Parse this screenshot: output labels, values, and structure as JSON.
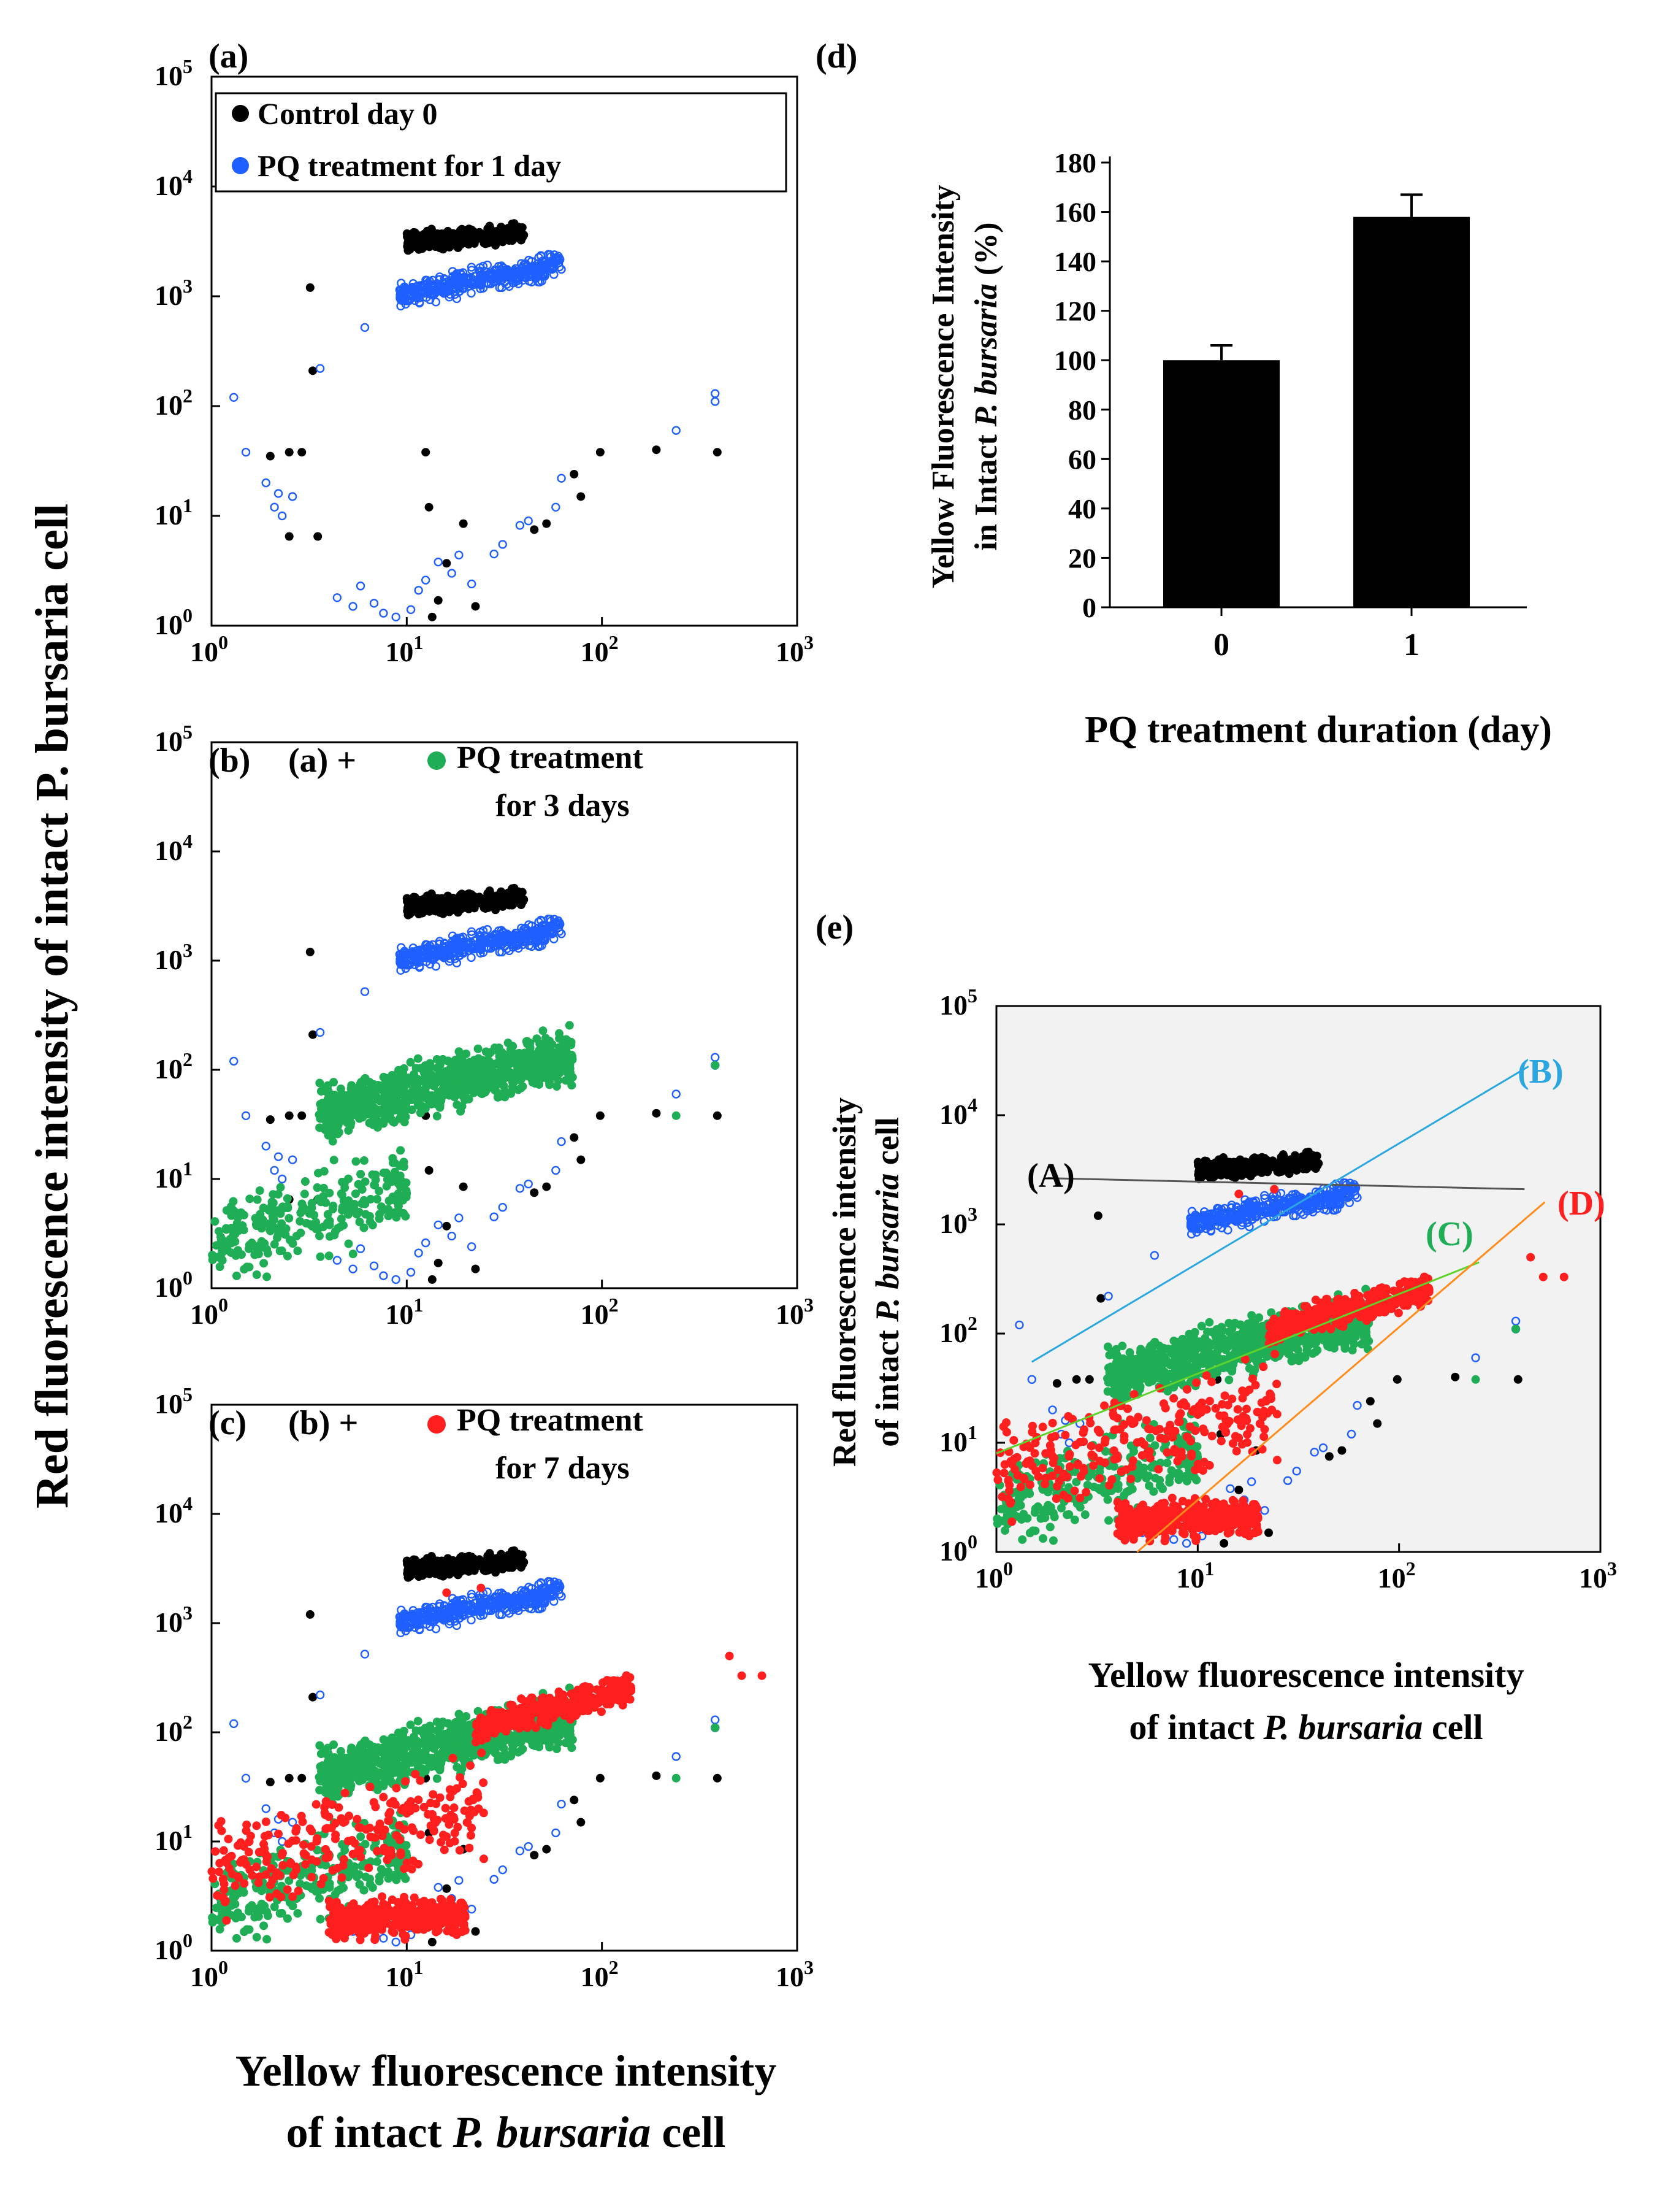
{
  "chart_data": [
    {
      "id": "a",
      "type": "scatter",
      "panel_label": "(a)",
      "x_scale": "log",
      "y_scale": "log",
      "xlim": [
        1,
        1000
      ],
      "ylim": [
        1,
        100000
      ],
      "x_ticks": [
        "10",
        "10",
        "10",
        "10"
      ],
      "x_tick_exps": [
        "0",
        "1",
        "2",
        "3"
      ],
      "y_ticks": [
        "10",
        "10",
        "10",
        "10",
        "10",
        "10"
      ],
      "y_tick_exps": [
        "0",
        "1",
        "2",
        "3",
        "4",
        "5"
      ],
      "legend": [
        {
          "name": "Control day 0",
          "color": "#000000"
        },
        {
          "name": "PQ treatment for 1 day",
          "color": "#1f5fff"
        }
      ],
      "series": [
        {
          "name": "Control day 0",
          "color": "#000000",
          "marker": "filled",
          "cluster": {
            "count": 260,
            "x_log": [
              1.0,
              1.6
            ],
            "y_log": [
              3.38,
              3.7
            ],
            "slope": 0.15
          },
          "points": [
            [
              3.2,
              1200
            ],
            [
              3.3,
              210
            ],
            [
              2.0,
              35
            ],
            [
              2.5,
              38
            ],
            [
              2.9,
              38
            ],
            [
              2.5,
              6.5
            ],
            [
              3.5,
              6.5
            ],
            [
              12.5,
              38
            ],
            [
              13.0,
              12
            ],
            [
              16,
              3.7
            ],
            [
              19.5,
              8.5
            ],
            [
              14.5,
              1.7
            ],
            [
              13.5,
              1.2
            ],
            [
              22.5,
              1.5
            ],
            [
              45,
              7.5
            ],
            [
              52,
              8.5
            ],
            [
              72,
              24
            ],
            [
              78,
              15
            ],
            [
              98,
              38
            ],
            [
              190,
              40
            ],
            [
              390,
              38
            ]
          ]
        },
        {
          "name": "PQ treatment for 1 day",
          "color": "#1f5fff",
          "marker": "open",
          "cluster": {
            "count": 420,
            "x_log": [
              0.95,
              1.8
            ],
            "y_log": [
              2.95,
              3.35
            ],
            "slope": 0.38
          },
          "points": [
            [
              1.3,
              120
            ],
            [
              1.5,
              38
            ],
            [
              1.9,
              20
            ],
            [
              2.1,
              12
            ],
            [
              2.3,
              10
            ],
            [
              2.2,
              16
            ],
            [
              2.6,
              15
            ],
            [
              3.6,
              220
            ],
            [
              4.4,
              1.8
            ],
            [
              5.3,
              1.5
            ],
            [
              5.8,
              2.3
            ],
            [
              6.8,
              1.6
            ],
            [
              7.6,
              1.3
            ],
            [
              8.8,
              1.2
            ],
            [
              6.1,
              520
            ],
            [
              10.5,
              1.4
            ],
            [
              11.5,
              2.1
            ],
            [
              12.5,
              2.6
            ],
            [
              14.5,
              3.8
            ],
            [
              17,
              3.0
            ],
            [
              18.5,
              4.4
            ],
            [
              21.5,
              2.4
            ],
            [
              28,
              4.5
            ],
            [
              31,
              5.5
            ],
            [
              38,
              8.2
            ],
            [
              42,
              9.0
            ],
            [
              58,
              12
            ],
            [
              62,
              22
            ],
            [
              240,
              60
            ],
            [
              380,
              110
            ],
            [
              380,
              130
            ]
          ]
        }
      ]
    },
    {
      "id": "b",
      "type": "scatter",
      "panel_label": "(b)",
      "legend_prefix": "(a) +",
      "legend": [
        {
          "name": "PQ treatment",
          "name_line2": "for 3 days",
          "color": "#1fae55"
        }
      ],
      "x_scale": "log",
      "y_scale": "log",
      "xlim": [
        1,
        1000
      ],
      "ylim": [
        1,
        100000
      ],
      "x_ticks": [
        "10",
        "10",
        "10",
        "10"
      ],
      "x_tick_exps": [
        "0",
        "1",
        "2",
        "3"
      ],
      "y_ticks": [
        "10",
        "10",
        "10",
        "10",
        "10",
        "10"
      ],
      "y_tick_exps": [
        "0",
        "1",
        "2",
        "3",
        "4",
        "5"
      ],
      "series": [
        {
          "name": "PQ treatment for 3 days",
          "color": "#1fae55",
          "marker": "filled",
          "clusters": [
            {
              "count": 900,
              "x_log": [
                0.55,
                1.85
              ],
              "y_log": [
                1.45,
                2.3
              ],
              "slope": 0.45
            },
            {
              "count": 260,
              "x_log": [
                0.0,
                1.0
              ],
              "y_log": [
                0.0,
                1.35
              ],
              "slope": 0.6
            }
          ],
          "points": [
            [
              240,
              38
            ],
            [
              380,
              110
            ]
          ]
        }
      ]
    },
    {
      "id": "c",
      "type": "scatter",
      "panel_label": "(c)",
      "legend_prefix": "(b) +",
      "legend": [
        {
          "name": "PQ treatment",
          "name_line2": "for 7 days",
          "color": "#ff1f1f"
        }
      ],
      "x_scale": "log",
      "y_scale": "log",
      "xlim": [
        1,
        1000
      ],
      "ylim": [
        1,
        100000
      ],
      "x_ticks": [
        "10",
        "10",
        "10",
        "10"
      ],
      "x_tick_exps": [
        "0",
        "1",
        "2",
        "3"
      ],
      "y_ticks": [
        "10",
        "10",
        "10",
        "10",
        "10",
        "10"
      ],
      "y_tick_exps": [
        "0",
        "1",
        "2",
        "3",
        "4",
        "5"
      ],
      "xlabel_line1": "Yellow fluorescence intensity",
      "xlabel_line2": "of intact P. bursaria cell",
      "series": [
        {
          "name": "PQ treatment for 7 days",
          "color": "#ff1f1f",
          "marker": "filled",
          "clusters": [
            {
              "count": 380,
              "x_log": [
                1.35,
                2.15
              ],
              "y_log": [
                2.0,
                2.45
              ],
              "slope": 0.5
            },
            {
              "count": 380,
              "x_log": [
                0.6,
                1.3
              ],
              "y_log": [
                0.0,
                0.6
              ],
              "slope": 0.1
            },
            {
              "count": 260,
              "x_log": [
                0.0,
                1.4
              ],
              "y_log": [
                0.3,
                1.8
              ],
              "slope": 0.45
            }
          ],
          "points": [
            [
              520,
              330
            ],
            [
              660,
              330
            ],
            [
              450,
              500
            ],
            [
              16,
              1900
            ],
            [
              24,
              2100
            ]
          ]
        }
      ]
    },
    {
      "id": "d",
      "type": "bar",
      "panel_label": "(d)",
      "categories": [
        "0",
        "1"
      ],
      "values": [
        100,
        158
      ],
      "errors": [
        6,
        9
      ],
      "ylim": [
        0,
        180
      ],
      "y_ticks": [
        "0",
        "20",
        "40",
        "60",
        "80",
        "100",
        "120",
        "140",
        "160",
        "180"
      ],
      "ylabel_line1": "Yellow Fluorescence Intensity",
      "ylabel_line2": "in Intact P. bursaria (%)",
      "xlabel": "PQ treatment duration  (day)",
      "bar_color": "#000000"
    },
    {
      "id": "e",
      "type": "scatter",
      "panel_label": "(e)",
      "x_scale": "log",
      "y_scale": "log",
      "xlim": [
        1,
        1000
      ],
      "ylim": [
        1,
        100000
      ],
      "x_ticks": [
        "10",
        "10",
        "10",
        "10"
      ],
      "x_tick_exps": [
        "0",
        "1",
        "2",
        "3"
      ],
      "y_ticks": [
        "10",
        "10",
        "10",
        "10",
        "10",
        "10"
      ],
      "y_tick_exps": [
        "0",
        "1",
        "2",
        "3",
        "4",
        "5"
      ],
      "ylabel_line1": "Red fluorescence intensity",
      "ylabel_line2": "of intact P. bursaria cell",
      "xlabel_line1": "Yellow fluorescence intensity",
      "xlabel_line2": "of intact P. bursaria cell",
      "background": "#f2f2f2",
      "fit_lines": [
        {
          "label": "(A)",
          "color": "#555555",
          "x": [
            1.8,
            420
          ],
          "y": [
            2650,
            2100
          ]
        },
        {
          "label": "(B)",
          "color": "#2aa7e0",
          "x": [
            1.5,
            440
          ],
          "y": [
            55,
            28000
          ]
        },
        {
          "label": "(C)",
          "color": "#5fd32a",
          "x": [
            1.0,
            250
          ],
          "y": [
            8,
            450
          ]
        },
        {
          "label": "(D)",
          "color": "#ff8c1a",
          "x": [
            5,
            530
          ],
          "y": [
            1.0,
            1600
          ]
        }
      ]
    }
  ],
  "shared_ylabel": "Red fluorescence intensity of intact P. bursaria cell"
}
